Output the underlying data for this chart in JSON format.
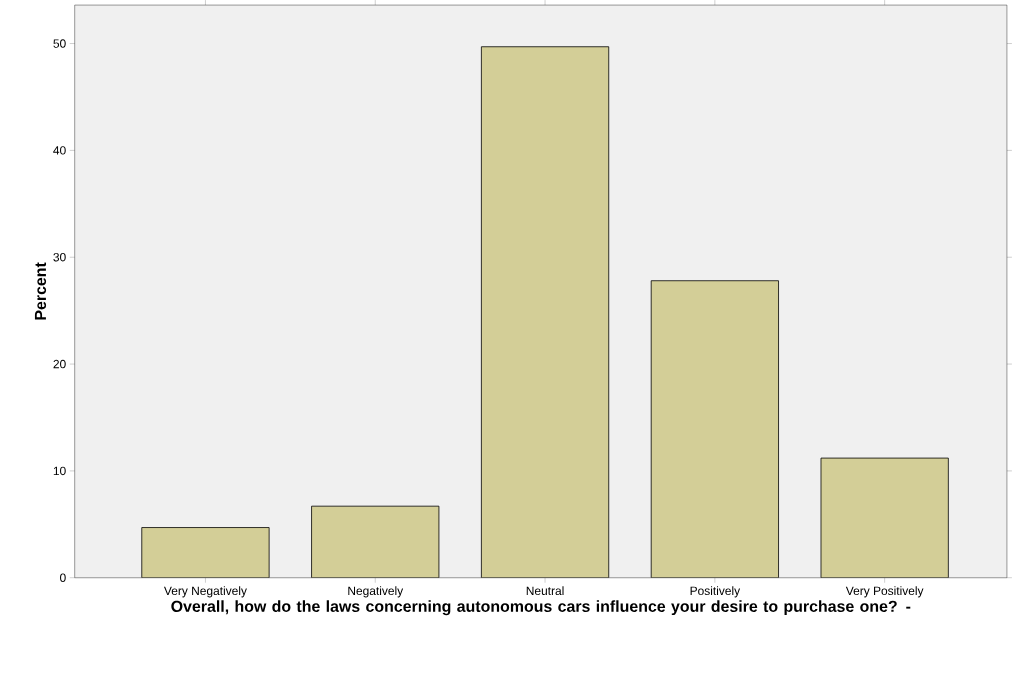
{
  "chart_data": {
    "type": "bar",
    "xlabel": "Overall, how do the laws concerning autonomous cars influence your desire to purchase one? -",
    "ylabel": "Percent",
    "categories": [
      "Very Negatively",
      "Negatively",
      "Neutral",
      "Positively",
      "Very Positively"
    ],
    "values": [
      4.7,
      6.7,
      49.7,
      27.8,
      11.2
    ],
    "color": "#d3ce97",
    "ylim": [
      0,
      53.6
    ],
    "yticks": [
      0,
      10,
      20,
      30,
      40,
      50
    ]
  }
}
